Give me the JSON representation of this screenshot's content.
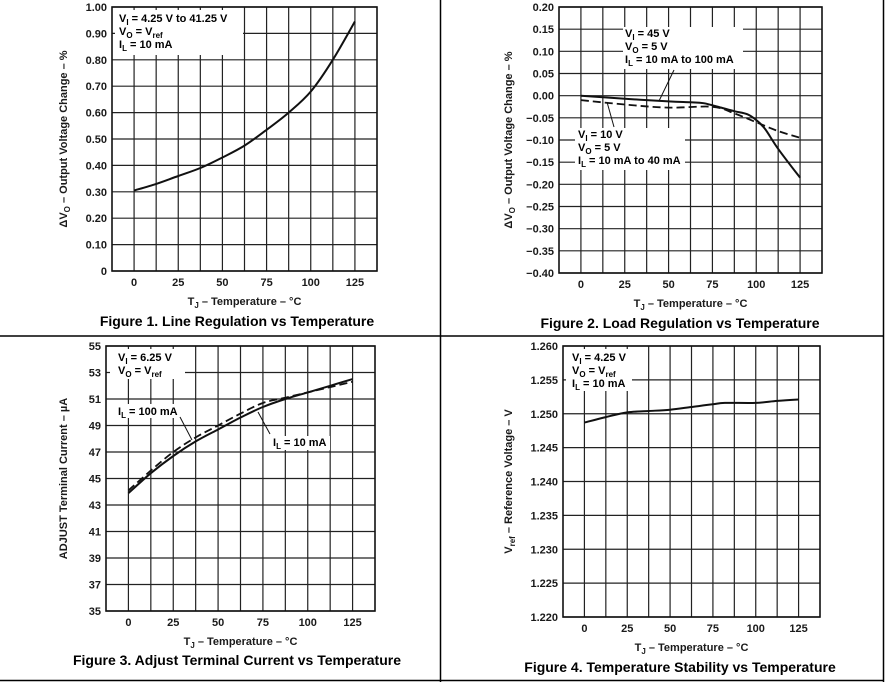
{
  "charts": [
    {
      "id": "fig1",
      "caption": "Figure 1. Line Regulation vs Temperature",
      "xlabel_main": "T",
      "xlabel_sub": "J",
      "xlabel_rest": " – Temperature – °C",
      "ylabel_parts": [
        [
          "ΔV",
          ""
        ],
        [
          "O",
          "sub"
        ],
        [
          " – Output Voltage Change – %",
          ""
        ]
      ],
      "annotations": [
        [
          [
            "V",
            ""
          ],
          [
            "I",
            "sub"
          ],
          [
            " = 4.25 V to 41.25 V",
            ""
          ]
        ],
        [
          [
            "V",
            ""
          ],
          [
            "O",
            "sub"
          ],
          [
            " = V",
            ""
          ],
          [
            "ref",
            "sub"
          ]
        ],
        [
          [
            "I",
            ""
          ],
          [
            "L",
            "sub"
          ],
          [
            " = 10 mA",
            ""
          ]
        ]
      ]
    },
    {
      "id": "fig2",
      "caption": "Figure 2. Load Regulation vs Temperature",
      "xlabel_main": "T",
      "xlabel_sub": "J",
      "xlabel_rest": " – Temperature – °C",
      "ylabel_parts": [
        [
          "ΔV",
          ""
        ],
        [
          "O",
          "sub"
        ],
        [
          " – Output Voltage Change – %",
          ""
        ]
      ],
      "annotations_a": [
        [
          [
            "V",
            ""
          ],
          [
            "I",
            "sub"
          ],
          [
            " = 45 V",
            ""
          ]
        ],
        [
          [
            "V",
            ""
          ],
          [
            "O",
            "sub"
          ],
          [
            " = 5 V",
            ""
          ]
        ],
        [
          [
            "I",
            ""
          ],
          [
            "L",
            "sub"
          ],
          [
            " = 10 mA to 100 mA",
            ""
          ]
        ]
      ],
      "annotations_b": [
        [
          [
            "V",
            ""
          ],
          [
            "I",
            "sub"
          ],
          [
            " = 10 V",
            ""
          ]
        ],
        [
          [
            "V",
            ""
          ],
          [
            "O",
            "sub"
          ],
          [
            " = 5 V",
            ""
          ]
        ],
        [
          [
            "I",
            ""
          ],
          [
            "L",
            "sub"
          ],
          [
            " = 10 mA to 40 mA",
            ""
          ]
        ]
      ]
    },
    {
      "id": "fig3",
      "caption": "Figure 3. Adjust Terminal Current vs Temperature",
      "xlabel_main": "T",
      "xlabel_sub": "J",
      "xlabel_rest": " – Temperature – °C",
      "ylabel_parts": [
        [
          "ADJUST Terminal Current – µA",
          ""
        ]
      ],
      "annotations": [
        [
          [
            "V",
            ""
          ],
          [
            "I",
            "sub"
          ],
          [
            " = 6.25 V",
            ""
          ]
        ],
        [
          [
            "V",
            ""
          ],
          [
            "O",
            "sub"
          ],
          [
            " = V",
            ""
          ],
          [
            "ref",
            "sub"
          ]
        ]
      ],
      "label_a": [
        [
          "I",
          ""
        ],
        [
          "L",
          "sub"
        ],
        [
          " = 100 mA",
          ""
        ]
      ],
      "label_b": [
        [
          "I",
          ""
        ],
        [
          "L",
          "sub"
        ],
        [
          " = 10 mA",
          ""
        ]
      ]
    },
    {
      "id": "fig4",
      "caption": "Figure 4. Temperature Stability vs Temperature",
      "xlabel_main": "T",
      "xlabel_sub": "J",
      "xlabel_rest": " – Temperature – °C",
      "ylabel_parts": [
        [
          "V",
          ""
        ],
        [
          "ref",
          "sub"
        ],
        [
          " – Reference Voltage – V",
          ""
        ]
      ],
      "annotations": [
        [
          [
            "V",
            ""
          ],
          [
            "I",
            "sub"
          ],
          [
            " = 4.25 V",
            ""
          ]
        ],
        [
          [
            "V",
            ""
          ],
          [
            "O",
            "sub"
          ],
          [
            " = V",
            ""
          ],
          [
            "ref",
            "sub"
          ]
        ],
        [
          [
            "I",
            ""
          ],
          [
            "L",
            "sub"
          ],
          [
            " = 10 mA",
            ""
          ]
        ]
      ]
    }
  ],
  "chart_data": [
    {
      "type": "line",
      "title": "Figure 1. Line Regulation vs Temperature",
      "xlabel": "TJ – Temperature – °C",
      "ylabel": "ΔVO – Output Voltage Change – %",
      "xlim": [
        -12.5,
        137.5
      ],
      "ylim": [
        0,
        1.0
      ],
      "xticks": [
        0,
        25,
        50,
        75,
        100,
        125
      ],
      "yticks": [
        "0",
        "0.10",
        "0.20",
        "0.30",
        "0.40",
        "0.50",
        "0.60",
        "0.70",
        "0.80",
        "0.90",
        "1.00"
      ],
      "ytick_values": [
        0,
        0.1,
        0.2,
        0.3,
        0.4,
        0.5,
        0.6,
        0.7,
        0.8,
        0.9,
        1.0
      ],
      "grid": true,
      "series": [
        {
          "name": "VI = 4.25 V to 41.25 V, VO = Vref, IL = 10 mA",
          "style": "solid",
          "x": [
            0,
            12.5,
            25,
            37.5,
            50,
            62.5,
            75,
            87.5,
            100,
            112.5,
            125
          ],
          "y": [
            0.305,
            0.33,
            0.36,
            0.39,
            0.43,
            0.475,
            0.535,
            0.6,
            0.68,
            0.8,
            0.945
          ]
        }
      ]
    },
    {
      "type": "line",
      "title": "Figure 2. Load Regulation vs Temperature",
      "xlabel": "TJ – Temperature – °C",
      "ylabel": "ΔVO – Output Voltage Change – %",
      "xlim": [
        -12.5,
        137.5
      ],
      "ylim": [
        -0.4,
        0.2
      ],
      "xticks": [
        0,
        25,
        50,
        75,
        100,
        125
      ],
      "yticks": [
        "−0.40",
        "−0.35",
        "−0.30",
        "−0.25",
        "−0.20",
        "−0.15",
        "−0.10",
        "−0.05",
        "0.00",
        "0.05",
        "0.10",
        "0.15",
        "0.20"
      ],
      "ytick_values": [
        -0.4,
        -0.35,
        -0.3,
        -0.25,
        -0.2,
        -0.15,
        -0.1,
        -0.05,
        0.0,
        0.05,
        0.1,
        0.15,
        0.2
      ],
      "grid": true,
      "series": [
        {
          "name": "VI = 45 V, VO = 5 V, IL = 10 mA to 100 mA",
          "style": "solid",
          "x": [
            0,
            25,
            50,
            62.5,
            70,
            80,
            87.5,
            95,
            100,
            105,
            112.5,
            125
          ],
          "y": [
            0.0,
            -0.007,
            -0.013,
            -0.015,
            -0.017,
            -0.027,
            -0.035,
            -0.042,
            -0.055,
            -0.075,
            -0.12,
            -0.185
          ]
        },
        {
          "name": "VI = 10 V, VO = 5 V, IL = 10 mA to 40 mA",
          "style": "dashed",
          "x": [
            0,
            25,
            50,
            75,
            87.5,
            100,
            112.5,
            125
          ],
          "y": [
            -0.01,
            -0.02,
            -0.027,
            -0.025,
            -0.04,
            -0.06,
            -0.08,
            -0.095
          ]
        }
      ]
    },
    {
      "type": "line",
      "title": "Figure 3. Adjust Terminal Current vs Temperature",
      "xlabel": "TJ – Temperature – °C",
      "ylabel": "ADJUST Terminal Current – µA",
      "xlim": [
        -12.5,
        137.5
      ],
      "ylim": [
        35,
        55
      ],
      "xticks": [
        0,
        25,
        50,
        75,
        100,
        125
      ],
      "yticks": [
        "35",
        "37",
        "39",
        "41",
        "43",
        "45",
        "47",
        "49",
        "51",
        "53",
        "55"
      ],
      "ytick_values": [
        35,
        37,
        39,
        41,
        43,
        45,
        47,
        49,
        51,
        53,
        55
      ],
      "grid": true,
      "series": [
        {
          "name": "IL = 10 mA",
          "style": "solid",
          "x": [
            0,
            12.5,
            25,
            37.5,
            50,
            62.5,
            75,
            87.5,
            100,
            112.5,
            125
          ],
          "y": [
            43.9,
            45.4,
            46.7,
            47.8,
            48.7,
            49.6,
            50.4,
            51.0,
            51.5,
            52.0,
            52.5
          ]
        },
        {
          "name": "IL = 100 mA",
          "style": "dashed",
          "x": [
            0,
            12.5,
            25,
            37.5,
            50,
            62.5,
            75,
            87.5,
            100,
            112.5,
            125
          ],
          "y": [
            44.1,
            45.6,
            47.0,
            48.1,
            49.0,
            49.9,
            50.7,
            51.1,
            51.5,
            51.9,
            52.3
          ]
        }
      ]
    },
    {
      "type": "line",
      "title": "Figure 4. Temperature Stability vs Temperature",
      "xlabel": "TJ – Temperature – °C",
      "ylabel": "Vref – Reference Voltage – V",
      "xlim": [
        -12.5,
        137.5
      ],
      "ylim": [
        1.22,
        1.26
      ],
      "xticks": [
        0,
        25,
        50,
        75,
        100,
        125
      ],
      "yticks": [
        "1.220",
        "1.225",
        "1.230",
        "1.235",
        "1.240",
        "1.245",
        "1.250",
        "1.255",
        "1.260"
      ],
      "ytick_values": [
        1.22,
        1.225,
        1.23,
        1.235,
        1.24,
        1.245,
        1.25,
        1.255,
        1.26
      ],
      "grid": true,
      "series": [
        {
          "name": "VI = 4.25 V, VO = Vref, IL = 10 mA",
          "style": "solid",
          "x": [
            0,
            12.5,
            25,
            37.5,
            50,
            62.5,
            75,
            82,
            100,
            112.5,
            125
          ],
          "y": [
            1.2487,
            1.2495,
            1.2502,
            1.2504,
            1.2506,
            1.251,
            1.2514,
            1.2516,
            1.2516,
            1.2519,
            1.2521
          ]
        }
      ]
    }
  ]
}
